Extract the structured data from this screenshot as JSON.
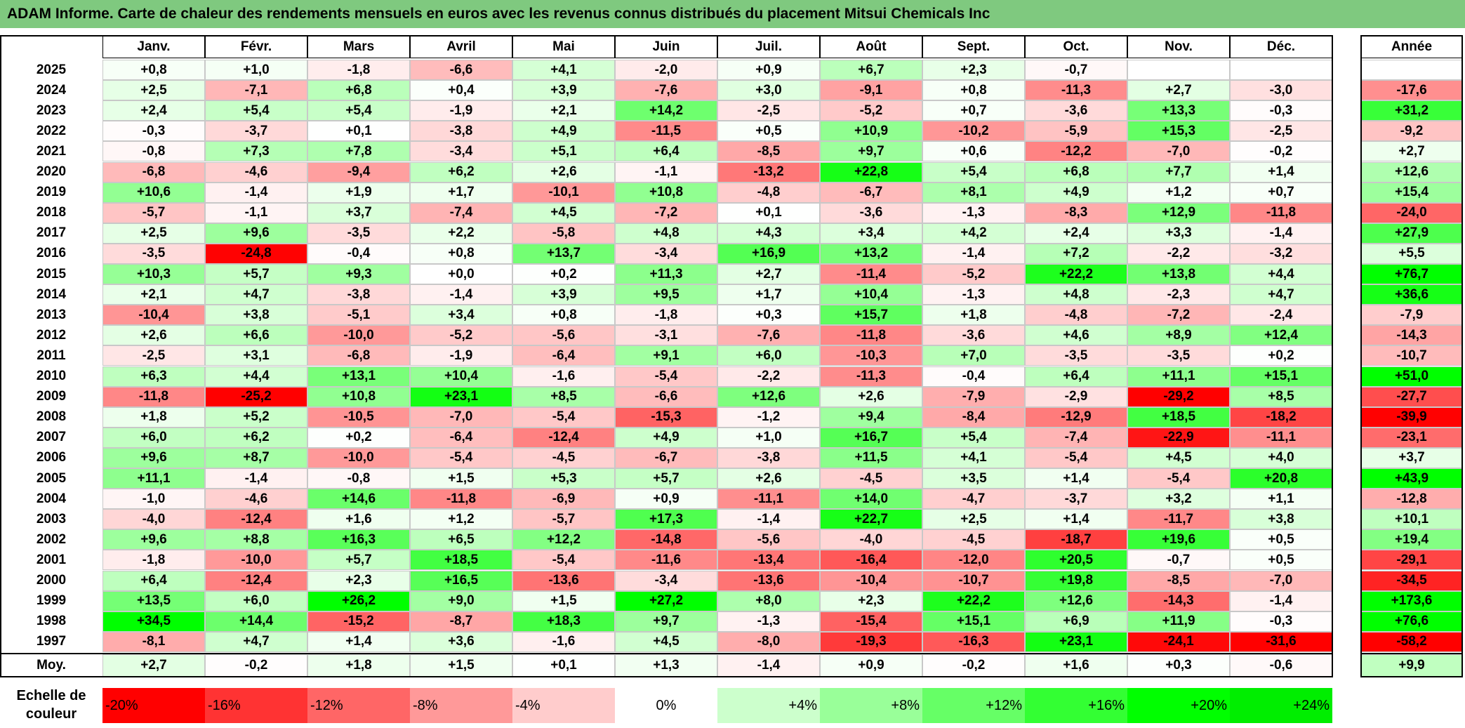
{
  "title": "ADAM Informe. Carte de chaleur des rendements mensuels en euros avec les revenus connus distribués du placement Mitsui Chemicals Inc",
  "chart_data": {
    "type": "heatmap",
    "title": "ADAM Informe. Carte de chaleur des rendements mensuels en euros avec les revenus connus distribués du placement Mitsui Chemicals Inc",
    "columns": [
      "Janv.",
      "Févr.",
      "Mars",
      "Avril",
      "Mai",
      "Juin",
      "Juil.",
      "Août",
      "Sept.",
      "Oct.",
      "Nov.",
      "Déc."
    ],
    "year_column": "Année",
    "rows": [
      {
        "year": "2025",
        "values": [
          "+0,8",
          "+1,0",
          "-1,8",
          "-6,6",
          "+4,1",
          "-2,0",
          "+0,9",
          "+6,7",
          "+2,3",
          "-0,7",
          "",
          ""
        ],
        "annual": ""
      },
      {
        "year": "2024",
        "values": [
          "+2,5",
          "-7,1",
          "+6,8",
          "+0,4",
          "+3,9",
          "-7,6",
          "+3,0",
          "-9,1",
          "+0,8",
          "-11,3",
          "+2,7",
          "-3,0"
        ],
        "annual": "-17,6"
      },
      {
        "year": "2023",
        "values": [
          "+2,4",
          "+5,4",
          "+5,4",
          "-1,9",
          "+2,1",
          "+14,2",
          "-2,5",
          "-5,2",
          "+0,7",
          "-3,6",
          "+13,3",
          "-0,3"
        ],
        "annual": "+31,2"
      },
      {
        "year": "2022",
        "values": [
          "-0,3",
          "-3,7",
          "+0,1",
          "-3,8",
          "+4,9",
          "-11,5",
          "+0,5",
          "+10,9",
          "-10,2",
          "-5,9",
          "+15,3",
          "-2,5"
        ],
        "annual": "-9,2"
      },
      {
        "year": "2021",
        "values": [
          "-0,8",
          "+7,3",
          "+7,8",
          "-3,4",
          "+5,1",
          "+6,4",
          "-8,5",
          "+9,7",
          "+0,6",
          "-12,2",
          "-7,0",
          "-0,2"
        ],
        "annual": "+2,7"
      },
      {
        "year": "2020",
        "values": [
          "-6,8",
          "-4,6",
          "-9,4",
          "+6,2",
          "+2,6",
          "-1,1",
          "-13,2",
          "+22,8",
          "+5,4",
          "+6,8",
          "+7,7",
          "+1,4"
        ],
        "annual": "+12,6"
      },
      {
        "year": "2019",
        "values": [
          "+10,6",
          "-1,4",
          "+1,9",
          "+1,7",
          "-10,1",
          "+10,8",
          "-4,8",
          "-6,7",
          "+8,1",
          "+4,9",
          "+1,2",
          "+0,7"
        ],
        "annual": "+15,4"
      },
      {
        "year": "2018",
        "values": [
          "-5,7",
          "-1,1",
          "+3,7",
          "-7,4",
          "+4,5",
          "-7,2",
          "+0,1",
          "-3,6",
          "-1,3",
          "-8,3",
          "+12,9",
          "-11,8"
        ],
        "annual": "-24,0"
      },
      {
        "year": "2017",
        "values": [
          "+2,5",
          "+9,6",
          "-3,5",
          "+2,2",
          "-5,8",
          "+4,8",
          "+4,3",
          "+3,4",
          "+4,2",
          "+2,4",
          "+3,3",
          "-1,4"
        ],
        "annual": "+27,9"
      },
      {
        "year": "2016",
        "values": [
          "-3,5",
          "-24,8",
          "-0,4",
          "+0,8",
          "+13,7",
          "-3,4",
          "+16,9",
          "+13,2",
          "-1,4",
          "+7,2",
          "-2,2",
          "-3,2"
        ],
        "annual": "+5,5"
      },
      {
        "year": "2015",
        "values": [
          "+10,3",
          "+5,7",
          "+9,3",
          "+0,0",
          "+0,2",
          "+11,3",
          "+2,7",
          "-11,4",
          "-5,2",
          "+22,2",
          "+13,8",
          "+4,4"
        ],
        "annual": "+76,7"
      },
      {
        "year": "2014",
        "values": [
          "+2,1",
          "+4,7",
          "-3,8",
          "-1,4",
          "+3,9",
          "+9,5",
          "+1,7",
          "+10,4",
          "-1,3",
          "+4,8",
          "-2,3",
          "+4,7"
        ],
        "annual": "+36,6"
      },
      {
        "year": "2013",
        "values": [
          "-10,4",
          "+3,8",
          "-5,1",
          "+3,4",
          "+0,8",
          "-1,8",
          "+0,3",
          "+15,7",
          "+1,8",
          "-4,8",
          "-7,2",
          "-2,4"
        ],
        "annual": "-7,9"
      },
      {
        "year": "2012",
        "values": [
          "+2,6",
          "+6,6",
          "-10,0",
          "-5,2",
          "-5,6",
          "-3,1",
          "-7,6",
          "-11,8",
          "-3,6",
          "+4,6",
          "+8,9",
          "+12,4"
        ],
        "annual": "-14,3"
      },
      {
        "year": "2011",
        "values": [
          "-2,5",
          "+3,1",
          "-6,8",
          "-1,9",
          "-6,4",
          "+9,1",
          "+6,0",
          "-10,3",
          "+7,0",
          "-3,5",
          "-3,5",
          "+0,2"
        ],
        "annual": "-10,7"
      },
      {
        "year": "2010",
        "values": [
          "+6,3",
          "+4,4",
          "+13,1",
          "+10,4",
          "-1,6",
          "-5,4",
          "-2,2",
          "-11,3",
          "-0,4",
          "+6,4",
          "+11,1",
          "+15,1"
        ],
        "annual": "+51,0"
      },
      {
        "year": "2009",
        "values": [
          "-11,8",
          "-25,2",
          "+10,8",
          "+23,1",
          "+8,5",
          "-6,6",
          "+12,6",
          "+2,6",
          "-7,9",
          "-2,9",
          "-29,2",
          "+8,5"
        ],
        "annual": "-27,7"
      },
      {
        "year": "2008",
        "values": [
          "+1,8",
          "+5,2",
          "-10,5",
          "-7,0",
          "-5,4",
          "-15,3",
          "-1,2",
          "+9,4",
          "-8,4",
          "-12,9",
          "+18,5",
          "-18,2"
        ],
        "annual": "-39,9"
      },
      {
        "year": "2007",
        "values": [
          "+6,0",
          "+6,2",
          "+0,2",
          "-6,4",
          "-12,4",
          "+4,9",
          "+1,0",
          "+16,7",
          "+5,4",
          "-7,4",
          "-22,9",
          "-11,1"
        ],
        "annual": "-23,1"
      },
      {
        "year": "2006",
        "values": [
          "+9,6",
          "+8,7",
          "-10,0",
          "-5,4",
          "-4,5",
          "-6,7",
          "-3,8",
          "+11,5",
          "+4,1",
          "-5,4",
          "+4,5",
          "+4,0"
        ],
        "annual": "+3,7"
      },
      {
        "year": "2005",
        "values": [
          "+11,1",
          "-1,4",
          "-0,8",
          "+1,5",
          "+5,3",
          "+5,7",
          "+2,6",
          "-4,5",
          "+3,5",
          "+1,4",
          "-5,4",
          "+20,8"
        ],
        "annual": "+43,9"
      },
      {
        "year": "2004",
        "values": [
          "-1,0",
          "-4,6",
          "+14,6",
          "-11,8",
          "-6,9",
          "+0,9",
          "-11,1",
          "+14,0",
          "-4,7",
          "-3,7",
          "+3,2",
          "+1,1"
        ],
        "annual": "-12,8"
      },
      {
        "year": "2003",
        "values": [
          "-4,0",
          "-12,4",
          "+1,6",
          "+1,2",
          "-5,7",
          "+17,3",
          "-1,4",
          "+22,7",
          "+2,5",
          "+1,4",
          "-11,7",
          "+3,8"
        ],
        "annual": "+10,1"
      },
      {
        "year": "2002",
        "values": [
          "+9,6",
          "+8,8",
          "+16,3",
          "+6,5",
          "+12,2",
          "-14,8",
          "-5,6",
          "-4,0",
          "-4,5",
          "-18,7",
          "+19,6",
          "+0,5"
        ],
        "annual": "+19,4"
      },
      {
        "year": "2001",
        "values": [
          "-1,8",
          "-10,0",
          "+5,7",
          "+18,5",
          "-5,4",
          "-11,6",
          "-13,4",
          "-16,4",
          "-12,0",
          "+20,5",
          "-0,7",
          "+0,5"
        ],
        "annual": "-29,1"
      },
      {
        "year": "2000",
        "values": [
          "+6,4",
          "-12,4",
          "+2,3",
          "+16,5",
          "-13,6",
          "-3,4",
          "-13,6",
          "-10,4",
          "-10,7",
          "+19,8",
          "-8,5",
          "-7,0"
        ],
        "annual": "-34,5"
      },
      {
        "year": "1999",
        "values": [
          "+13,5",
          "+6,0",
          "+26,2",
          "+9,0",
          "+1,5",
          "+27,2",
          "+8,0",
          "+2,3",
          "+22,2",
          "+12,6",
          "-14,3",
          "-1,4"
        ],
        "annual": "+173,6"
      },
      {
        "year": "1998",
        "values": [
          "+34,5",
          "+14,4",
          "-15,2",
          "-8,7",
          "+18,3",
          "+9,7",
          "-1,3",
          "-15,4",
          "+15,1",
          "+6,9",
          "+11,9",
          "-0,3"
        ],
        "annual": "+76,6"
      },
      {
        "year": "1997",
        "values": [
          "-8,1",
          "+4,7",
          "+1,4",
          "+3,6",
          "-1,6",
          "+4,5",
          "-8,0",
          "-19,3",
          "-16,3",
          "+23,1",
          "-24,1",
          "-31,6"
        ],
        "annual": "-58,2"
      }
    ],
    "average": {
      "label": "Moy.",
      "values": [
        "+2,7",
        "-0,2",
        "+1,8",
        "+1,5",
        "+0,1",
        "+1,3",
        "-1,4",
        "+0,9",
        "-0,2",
        "+1,6",
        "+0,3",
        "-0,6"
      ],
      "annual": "+9,9"
    },
    "scale": {
      "label": "Echelle de couleur",
      "items": [
        "-20%",
        "-16%",
        "-12%",
        "-8%",
        "-4%",
        "0%",
        "+4%",
        "+8%",
        "+12%",
        "+16%",
        "+20%",
        "+24%"
      ],
      "colors": [
        "#ff0000",
        "#ff3333",
        "#ff6666",
        "#ff9999",
        "#ffcccc",
        "#ffffff",
        "#ccffcc",
        "#99ff99",
        "#66ff66",
        "#33ff33",
        "#00ff00",
        "#00ee00"
      ]
    }
  }
}
